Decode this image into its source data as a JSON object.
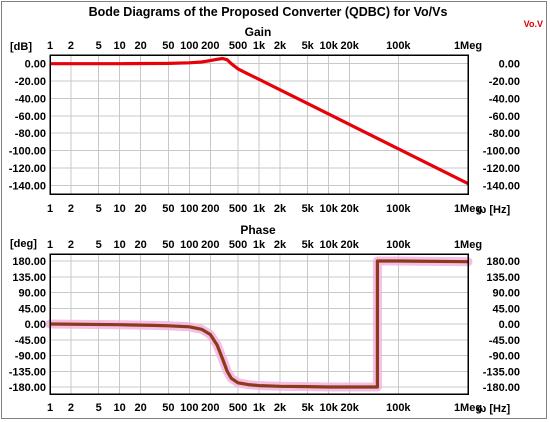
{
  "figure": {
    "title": "Bode Diagrams of the Proposed Converter (QDBC) for Vo/Vs",
    "trace_label": "Vo.V",
    "x_unit": "ω [Hz]",
    "colors": {
      "gain_trace": "#e8000a",
      "phase_trace": "#8b3a1a",
      "phase_glow": "#f3b3e0",
      "grid": "#c8c8c8"
    }
  },
  "chart_data": [
    {
      "type": "line",
      "title": "Gain",
      "ylabel": "[dB]",
      "xscale": "log",
      "xlim": [
        1,
        1000000
      ],
      "ylim": [
        -150,
        10
      ],
      "x_tick_labels": [
        "1",
        "2",
        "5",
        "10",
        "20",
        "50",
        "100",
        "200",
        "500",
        "1k",
        "2k",
        "5k",
        "10k",
        "20k",
        "100k",
        "1Meg"
      ],
      "x_tick_values": [
        1,
        2,
        5,
        10,
        20,
        50,
        100,
        200,
        500,
        1000,
        2000,
        5000,
        10000,
        20000,
        100000,
        1000000
      ],
      "y_tick_labels": [
        "0.00",
        "-20.00",
        "-40.00",
        "-60.00",
        "-80.00",
        "-100.00",
        "-120.00",
        "-140.00"
      ],
      "y_tick_values": [
        0,
        -20,
        -40,
        -60,
        -80,
        -100,
        -120,
        -140
      ],
      "grid": true,
      "series": [
        {
          "x": [
            1,
            10,
            50,
            100,
            150,
            200,
            250,
            300,
            350,
            400,
            500,
            700,
            1000,
            2000,
            5000,
            10000,
            100000,
            1000000
          ],
          "values": [
            0,
            0,
            0.3,
            1,
            2,
            3.5,
            5,
            6,
            4.5,
            0,
            -6,
            -12,
            -18,
            -30,
            -46,
            -58,
            -98,
            -138
          ]
        }
      ]
    },
    {
      "type": "line",
      "title": "Phase",
      "ylabel": "[deg]",
      "xscale": "log",
      "xlim": [
        1,
        1000000
      ],
      "ylim": [
        -200,
        200
      ],
      "x_tick_labels": [
        "1",
        "2",
        "5",
        "10",
        "20",
        "50",
        "100",
        "200",
        "500",
        "1k",
        "2k",
        "5k",
        "10k",
        "20k",
        "100k",
        "1Meg"
      ],
      "x_tick_values": [
        1,
        2,
        5,
        10,
        20,
        50,
        100,
        200,
        500,
        1000,
        2000,
        5000,
        10000,
        20000,
        100000,
        1000000
      ],
      "y_tick_labels": [
        "180.00",
        "135.00",
        "90.00",
        "45.00",
        "0.00",
        "-45.00",
        "-90.00",
        "-135.00",
        "-180.00"
      ],
      "y_tick_values": [
        180,
        135,
        90,
        45,
        0,
        -45,
        -90,
        -135,
        -180
      ],
      "grid": true,
      "series": [
        {
          "x": [
            1,
            10,
            30,
            50,
            100,
            150,
            200,
            250,
            300,
            350,
            400,
            500,
            700,
            1000,
            2000,
            5000,
            10000,
            20000,
            50000,
            50001,
            100000,
            1000000
          ],
          "values": [
            0,
            -2,
            -4,
            -5,
            -8,
            -15,
            -30,
            -60,
            -100,
            -135,
            -155,
            -168,
            -173,
            -176,
            -178,
            -179,
            -180,
            -180,
            -180,
            180,
            180,
            178
          ]
        }
      ]
    }
  ]
}
